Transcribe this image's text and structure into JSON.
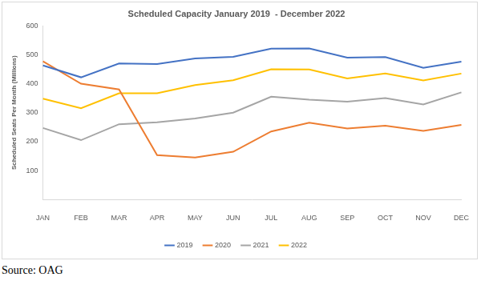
{
  "chart_data": {
    "type": "line",
    "title": "Scheduled Capacity January 2019  - December 2022",
    "y_label": "Scheduled Seats Per Month (Millions)",
    "annotation": "Source: OAG",
    "categories": [
      "JAN",
      "FEB",
      "MAR",
      "APR",
      "MAY",
      "JUN",
      "JUL",
      "AUG",
      "SEP",
      "OCT",
      "NOV",
      "DEC"
    ],
    "series": [
      {
        "name": "2019",
        "color": "#4472c4",
        "values": [
          463,
          422,
          470,
          468,
          487,
          493,
          521,
          522,
          490,
          492,
          455,
          476
        ]
      },
      {
        "name": "2020",
        "color": "#ed7d31",
        "values": [
          477,
          400,
          380,
          153,
          145,
          165,
          235,
          265,
          245,
          255,
          237,
          258
        ]
      },
      {
        "name": "2021",
        "color": "#a5a5a5",
        "values": [
          247,
          205,
          260,
          267,
          280,
          300,
          355,
          345,
          338,
          350,
          328,
          370
        ]
      },
      {
        "name": "2022",
        "color": "#ffc000",
        "values": [
          348,
          315,
          367,
          367,
          395,
          412,
          450,
          449,
          418,
          435,
          411,
          435
        ]
      }
    ],
    "ylim": [
      0,
      600
    ],
    "yticks": [
      100,
      200,
      300,
      400,
      500,
      600
    ],
    "grid": false,
    "legend": "bottom"
  }
}
